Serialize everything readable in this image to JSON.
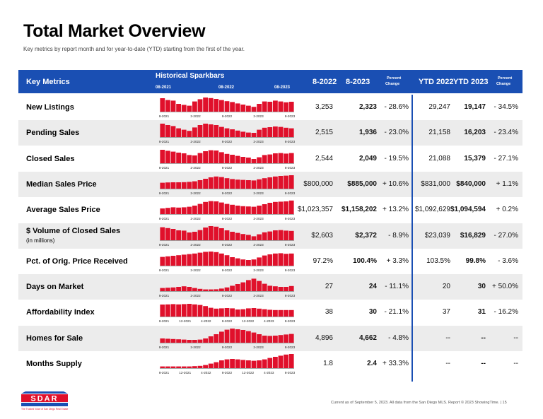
{
  "page": {
    "title": "Total Market Overview",
    "subtitle": "Key metrics by report month and for year-to-date (YTD) starting from the first of the year."
  },
  "header": {
    "key_metrics": "Key Metrics",
    "sparkbars": "Historical Sparkbars",
    "spark_dates": [
      "08-2021",
      "08-2022",
      "08-2023"
    ],
    "month_prev": "8-2022",
    "month_curr": "8-2023",
    "pct_change_line1": "Percent",
    "pct_change_line2": "Change",
    "ytd_prev": "YTD 2022",
    "ytd_curr": "YTD 2023",
    "pct_change2_line1": "Percent",
    "pct_change2_line2": "Change"
  },
  "colors": {
    "header_bg": "#1a4fb3",
    "bar": "#e0102b",
    "alt_row": "#ececec"
  },
  "metrics": [
    {
      "label": "New Listings",
      "sublabel": "",
      "prev": "3,253",
      "curr": "2,323",
      "pct": "- 28.6%",
      "ytd_prev": "29,247",
      "ytd_curr": "19,147",
      "ytd_pct": "- 34.5%",
      "axis": [
        "8-2021",
        "2-2022",
        "8-2022",
        "2-2023",
        "8-2023"
      ]
    },
    {
      "label": "Pending Sales",
      "sublabel": "",
      "prev": "2,515",
      "curr": "1,936",
      "pct": "- 23.0%",
      "ytd_prev": "21,158",
      "ytd_curr": "16,203",
      "ytd_pct": "- 23.4%",
      "axis": [
        "8-2021",
        "2-2022",
        "8-2022",
        "2-2023",
        "8-2023"
      ]
    },
    {
      "label": "Closed Sales",
      "sublabel": "",
      "prev": "2,544",
      "curr": "2,049",
      "pct": "- 19.5%",
      "ytd_prev": "21,088",
      "ytd_curr": "15,379",
      "ytd_pct": "- 27.1%",
      "axis": [
        "8-2021",
        "2-2022",
        "8-2022",
        "2-2023",
        "8-2023"
      ]
    },
    {
      "label": "Median Sales Price",
      "sublabel": "",
      "prev": "$800,000",
      "curr": "$885,000",
      "pct": "+ 10.6%",
      "ytd_prev": "$831,000",
      "ytd_curr": "$840,000",
      "ytd_pct": "+ 1.1%",
      "axis": [
        "8-2021",
        "2-2022",
        "8-2022",
        "2-2023",
        "8-2023"
      ]
    },
    {
      "label": "Average Sales Price",
      "sublabel": "",
      "prev": "$1,023,357",
      "curr": "$1,158,202",
      "pct": "+ 13.2%",
      "ytd_prev": "$1,092,629",
      "ytd_curr": "$1,094,594",
      "ytd_pct": "+ 0.2%",
      "axis": [
        "8-2021",
        "2-2022",
        "8-2022",
        "2-2023",
        "8-2023"
      ]
    },
    {
      "label": "$ Volume of Closed Sales",
      "sublabel": "(in millions)",
      "prev": "$2,603",
      "curr": "$2,372",
      "pct": "- 8.9%",
      "ytd_prev": "$23,039",
      "ytd_curr": "$16,829",
      "ytd_pct": "- 27.0%",
      "axis": [
        "8-2021",
        "2-2022",
        "8-2022",
        "2-2023",
        "8-2023"
      ]
    },
    {
      "label": "Pct. of Orig. Price Received",
      "sublabel": "",
      "prev": "97.2%",
      "curr": "100.4%",
      "pct": "+ 3.3%",
      "ytd_prev": "103.5%",
      "ytd_curr": "99.8%",
      "ytd_pct": "- 3.6%",
      "axis": [
        "8-2021",
        "2-2022",
        "8-2022",
        "2-2023",
        "8-2023"
      ]
    },
    {
      "label": "Days on Market",
      "sublabel": "",
      "prev": "27",
      "curr": "24",
      "pct": "- 11.1%",
      "ytd_prev": "20",
      "ytd_curr": "30",
      "ytd_pct": "+ 50.0%",
      "axis": [
        "8-2021",
        "2-2022",
        "8-2022",
        "2-2023",
        "8-2023"
      ]
    },
    {
      "label": "Affordability Index",
      "sublabel": "",
      "prev": "38",
      "curr": "30",
      "pct": "- 21.1%",
      "ytd_prev": "37",
      "ytd_curr": "31",
      "ytd_pct": "- 16.2%",
      "axis": [
        "8-2021",
        "12-2021",
        "4-2022",
        "8-2022",
        "12-2022",
        "4-2023",
        "8-2023"
      ]
    },
    {
      "label": "Homes for Sale",
      "sublabel": "",
      "prev": "4,896",
      "curr": "4,662",
      "pct": "- 4.8%",
      "ytd_prev": "--",
      "ytd_curr": "--",
      "ytd_pct": "--",
      "axis": [
        "8-2021",
        "2-2022",
        "8-2022",
        "2-2023",
        "8-2023"
      ]
    },
    {
      "label": "Months Supply",
      "sublabel": "",
      "prev": "1.8",
      "curr": "2.4",
      "pct": "+ 33.3%",
      "ytd_prev": "--",
      "ytd_curr": "--",
      "ytd_pct": "--",
      "axis": [
        "8-2021",
        "12-2021",
        "4-2022",
        "8-2022",
        "12-2022",
        "4-2023",
        "8-2023"
      ]
    }
  ],
  "sparks": [
    [
      0.95,
      0.82,
      0.78,
      0.55,
      0.48,
      0.42,
      0.72,
      0.88,
      1.0,
      0.96,
      0.9,
      0.82,
      0.74,
      0.68,
      0.58,
      0.5,
      0.42,
      0.34,
      0.55,
      0.72,
      0.7,
      0.78,
      0.72,
      0.66,
      0.7
    ],
    [
      0.95,
      0.85,
      0.78,
      0.62,
      0.52,
      0.44,
      0.68,
      0.85,
      0.95,
      0.9,
      0.85,
      0.72,
      0.62,
      0.55,
      0.46,
      0.38,
      0.32,
      0.3,
      0.52,
      0.66,
      0.7,
      0.75,
      0.72,
      0.66,
      0.62
    ],
    [
      0.95,
      0.88,
      0.82,
      0.75,
      0.7,
      0.58,
      0.55,
      0.72,
      0.85,
      0.92,
      0.9,
      0.78,
      0.66,
      0.6,
      0.52,
      0.45,
      0.4,
      0.3,
      0.42,
      0.58,
      0.62,
      0.7,
      0.72,
      0.68,
      0.72
    ],
    [
      0.42,
      0.44,
      0.45,
      0.45,
      0.46,
      0.48,
      0.52,
      0.6,
      0.7,
      0.8,
      0.86,
      0.82,
      0.74,
      0.68,
      0.64,
      0.62,
      0.6,
      0.58,
      0.66,
      0.74,
      0.8,
      0.86,
      0.9,
      0.92,
      0.95
    ],
    [
      0.4,
      0.44,
      0.48,
      0.46,
      0.48,
      0.52,
      0.6,
      0.72,
      0.86,
      0.92,
      0.9,
      0.82,
      0.72,
      0.66,
      0.6,
      0.56,
      0.54,
      0.52,
      0.6,
      0.7,
      0.8,
      0.86,
      0.88,
      0.9,
      0.96
    ],
    [
      0.92,
      0.86,
      0.8,
      0.7,
      0.68,
      0.55,
      0.6,
      0.72,
      0.9,
      1.0,
      0.96,
      0.85,
      0.7,
      0.6,
      0.52,
      0.44,
      0.38,
      0.28,
      0.42,
      0.56,
      0.62,
      0.7,
      0.72,
      0.68,
      0.66
    ],
    [
      0.62,
      0.66,
      0.7,
      0.74,
      0.78,
      0.82,
      0.86,
      0.92,
      0.98,
      1.0,
      0.96,
      0.86,
      0.74,
      0.6,
      0.52,
      0.44,
      0.4,
      0.44,
      0.58,
      0.72,
      0.8,
      0.86,
      0.88,
      0.84,
      0.86
    ],
    [
      0.22,
      0.24,
      0.26,
      0.3,
      0.34,
      0.3,
      0.22,
      0.16,
      0.12,
      0.12,
      0.13,
      0.18,
      0.26,
      0.38,
      0.5,
      0.62,
      0.78,
      0.88,
      0.72,
      0.52,
      0.38,
      0.34,
      0.3,
      0.3,
      0.36
    ],
    [
      0.85,
      0.86,
      0.88,
      0.86,
      0.88,
      0.9,
      0.86,
      0.82,
      0.74,
      0.62,
      0.56,
      0.58,
      0.6,
      0.58,
      0.5,
      0.52,
      0.58,
      0.6,
      0.56,
      0.52,
      0.48,
      0.46,
      0.46,
      0.46,
      0.46
    ],
    [
      0.3,
      0.28,
      0.26,
      0.24,
      0.22,
      0.2,
      0.2,
      0.22,
      0.3,
      0.45,
      0.6,
      0.78,
      0.92,
      1.0,
      0.95,
      0.9,
      0.82,
      0.72,
      0.6,
      0.5,
      0.48,
      0.5,
      0.54,
      0.58,
      0.62
    ],
    [
      0.12,
      0.12,
      0.12,
      0.12,
      0.12,
      0.12,
      0.14,
      0.16,
      0.22,
      0.32,
      0.42,
      0.55,
      0.62,
      0.65,
      0.62,
      0.58,
      0.55,
      0.52,
      0.55,
      0.62,
      0.72,
      0.8,
      0.88,
      0.96,
      1.0
    ]
  ],
  "logo": {
    "name": "SDAR",
    "tagline": "The Trusted Voice of San Diego Real Estate"
  },
  "footer": "Current as of September 5, 2023. All data from the San Diego MLS. Report © 2023 ShowingTime.  |  15"
}
